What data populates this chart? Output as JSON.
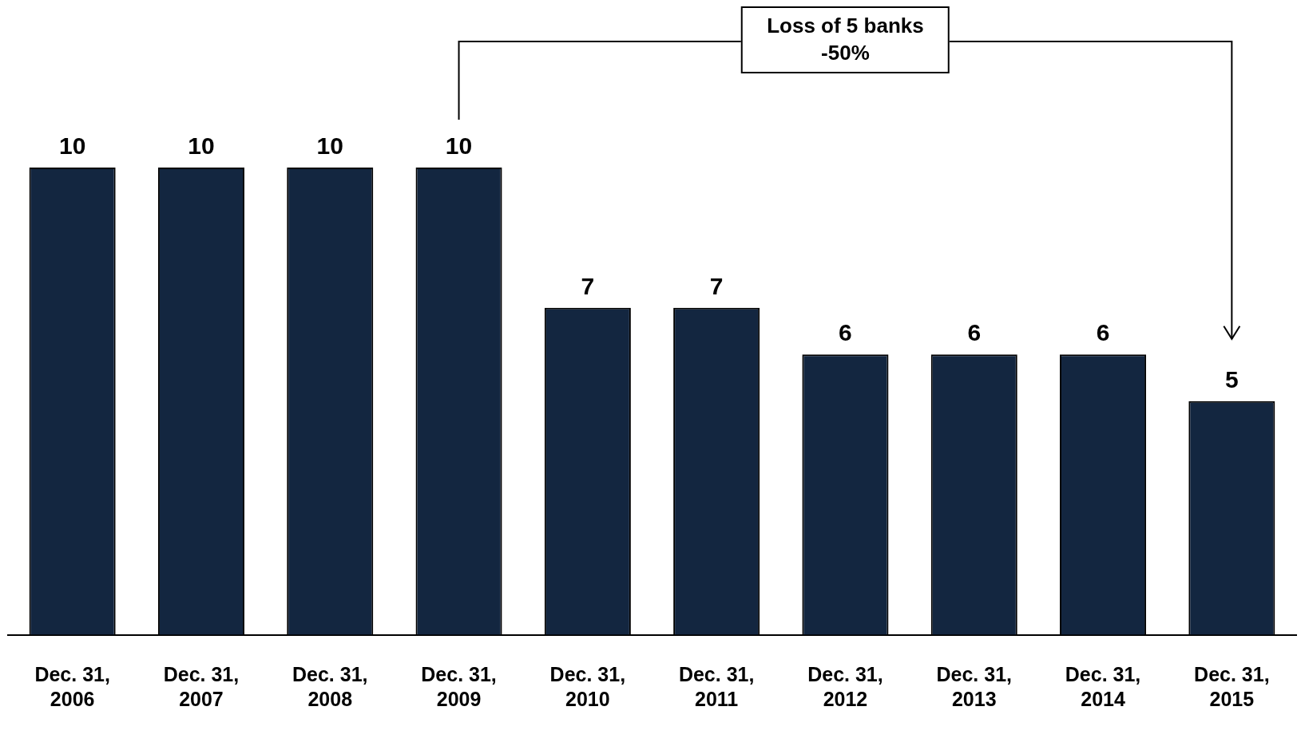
{
  "chart_data": {
    "type": "bar",
    "categories": [
      "Dec. 31, 2006",
      "Dec. 31, 2007",
      "Dec. 31, 2008",
      "Dec. 31, 2009",
      "Dec. 31, 2010",
      "Dec. 31, 2011",
      "Dec. 31, 2012",
      "Dec. 31, 2013",
      "Dec. 31, 2014",
      "Dec. 31, 2015"
    ],
    "values": [
      10,
      10,
      10,
      10,
      7,
      7,
      6,
      6,
      6,
      5
    ],
    "color": "#132640",
    "data_labels": true,
    "annotations": [
      "Loss of 5 banks\n-50%"
    ]
  }
}
